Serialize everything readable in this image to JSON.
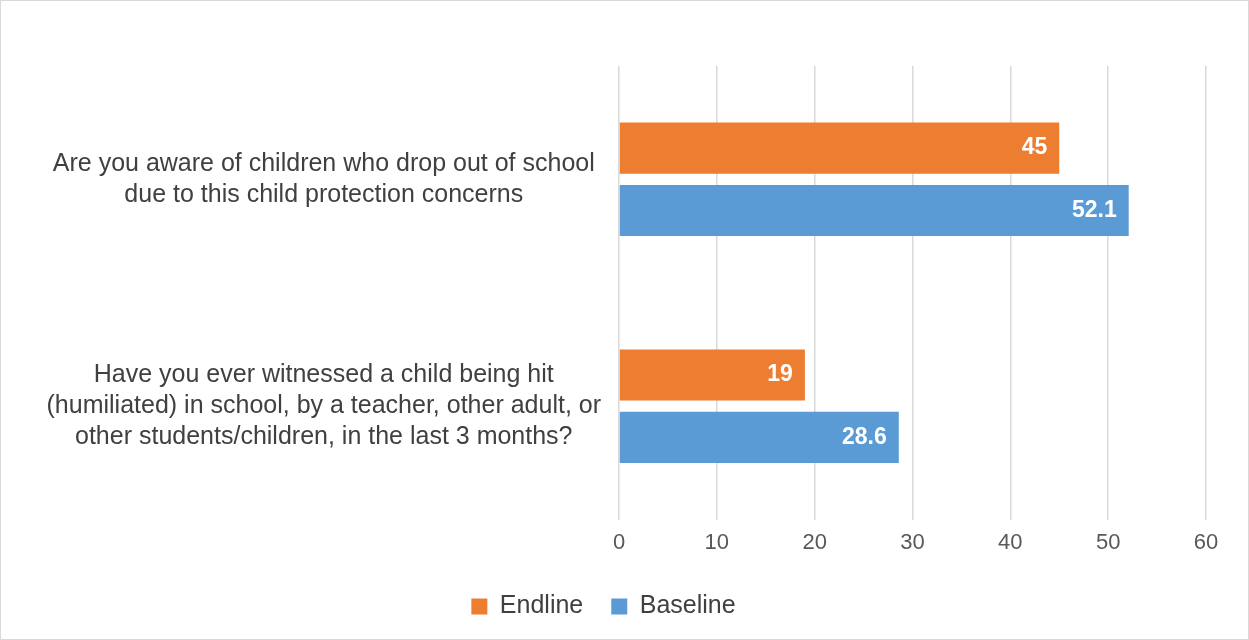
{
  "chart_data": {
    "type": "bar",
    "orientation": "horizontal",
    "categories": [
      "Are you aware of children who drop out of school due to this child protection concerns",
      "Have you ever witnessed a child being hit (humiliated) in school, by a teacher, other adult, or other students/children, in the last 3 months?"
    ],
    "series": [
      {
        "name": "Endline",
        "color": "#ed7d31",
        "values": [
          45,
          19
        ]
      },
      {
        "name": "Baseline",
        "color": "#5b9bd5",
        "values": [
          52.1,
          28.6
        ]
      }
    ],
    "xlim": [
      0,
      60
    ],
    "xticks": [
      0,
      10,
      20,
      30,
      40,
      50,
      60
    ],
    "grid": "x",
    "legend": "bottom",
    "data_labels": true
  }
}
